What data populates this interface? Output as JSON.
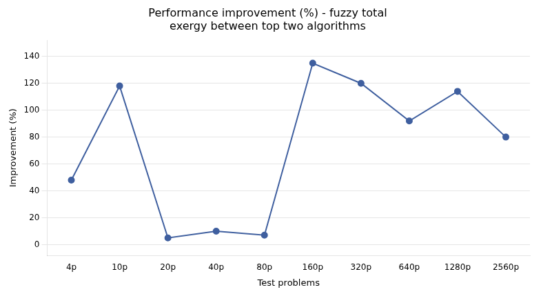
{
  "chart_data": {
    "type": "line",
    "title": [
      "Performance improvement (%) - fuzzy total",
      "exergy between top two algorithms"
    ],
    "x_label": "Test problems",
    "y_label": "Improvement (%)",
    "categories": [
      "4p",
      "10p",
      "20p",
      "40p",
      "80p",
      "160p",
      "320p",
      "640p",
      "1280p",
      "2560p"
    ],
    "values": [
      48,
      118,
      5,
      10,
      7,
      135,
      120,
      92,
      114,
      80
    ],
    "color": "#3F5F9F",
    "marker": "circle",
    "ylim": [
      -8,
      152
    ],
    "yticks": [
      0,
      20,
      40,
      60,
      80,
      100,
      120,
      140
    ],
    "grid": true
  }
}
